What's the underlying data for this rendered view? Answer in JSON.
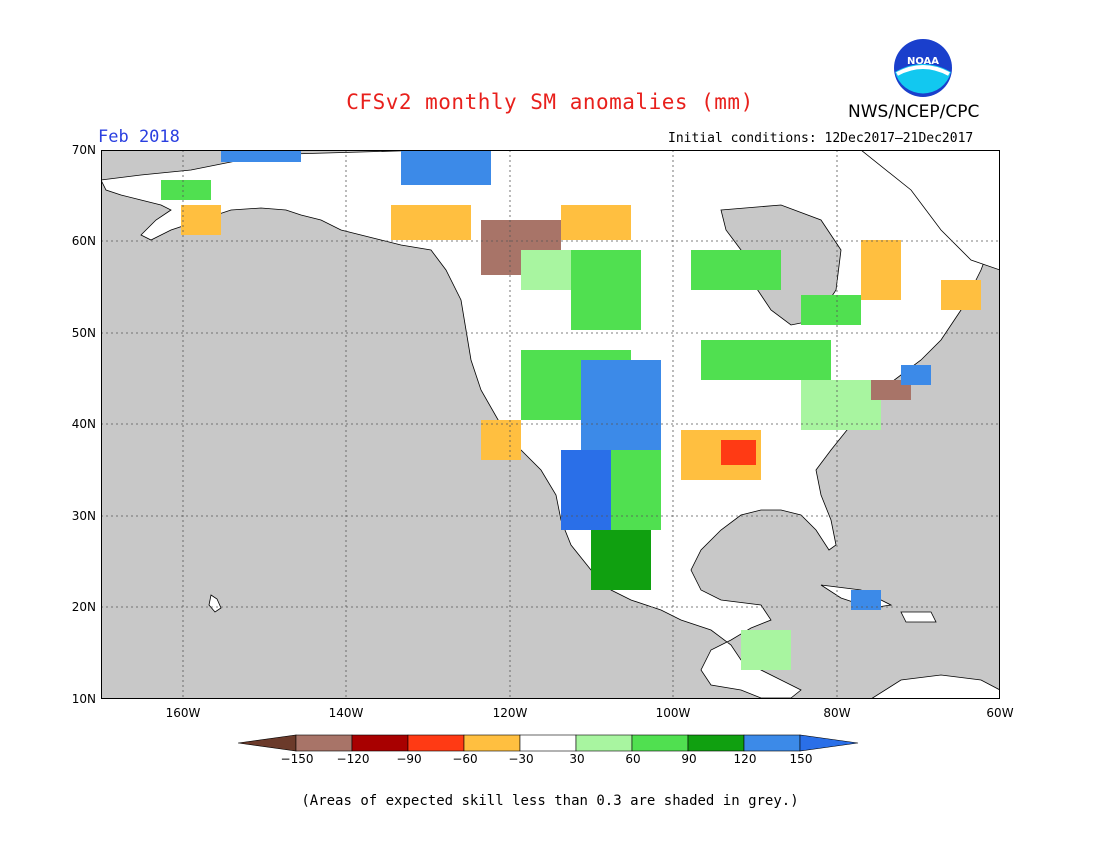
{
  "title": "CFSv2 monthly SM anomalies (mm)",
  "month": "Feb 2018",
  "initial_conditions": "Initial conditions: 12Dec2017–21Dec2017",
  "agency": "NWS/NCEP/CPC",
  "logo_text": "NOAA",
  "footnote": "(Areas of expected skill less than 0.3 are shaded in grey.)",
  "lat_labels": [
    "70N",
    "60N",
    "50N",
    "40N",
    "30N",
    "20N",
    "10N"
  ],
  "lon_labels": [
    "160W",
    "140W",
    "120W",
    "100W",
    "80W",
    "60W"
  ],
  "colorbar": {
    "ticks": [
      "−150",
      "−120",
      "−90",
      "−60",
      "−30",
      "30",
      "60",
      "90",
      "120",
      "150"
    ],
    "colors": [
      "#6b3a2a",
      "#a87468",
      "#a80000",
      "#ff3a14",
      "#ffbf40",
      "#ffffff",
      "#a8f5a0",
      "#50e050",
      "#10a010",
      "#3c8ae8",
      "#2a6fe8"
    ]
  },
  "colors": {
    "ocean": "#c8c8c8",
    "title": "#e8201c",
    "month": "#2a3fe0"
  }
}
